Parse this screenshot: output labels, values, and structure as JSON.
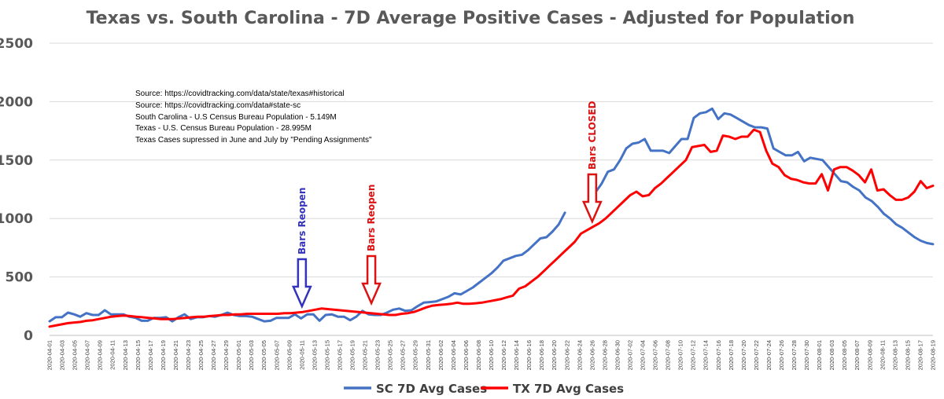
{
  "chart_data": {
    "type": "line",
    "title": "Texas vs. South Carolina - 7D Average Positive Cases - Adjusted for Population",
    "xlabel": "",
    "ylabel": "",
    "ylim": [
      0,
      2500
    ],
    "yticks": [
      0,
      500,
      1000,
      1500,
      2000,
      2500
    ],
    "grid": true,
    "legend_position": "bottom",
    "start_date": "2020-04-01",
    "end_date": "2020-08-19",
    "x_tick_labels": [
      "2020-04-01",
      "2020-04-03",
      "2020-04-05",
      "2020-04-07",
      "2020-04-09",
      "2020-04-11",
      "2020-04-13",
      "2020-04-15",
      "2020-04-17",
      "2020-04-19",
      "2020-04-21",
      "2020-04-23",
      "2020-04-25",
      "2020-04-27",
      "2020-04-29",
      "2020-05-01",
      "2020-05-03",
      "2020-05-05",
      "2020-05-07",
      "2020-05-09",
      "2020-05-11",
      "2020-05-13",
      "2020-05-15",
      "2020-05-17",
      "2020-05-19",
      "2020-05-21",
      "2020-05-23",
      "2020-05-25",
      "2020-05-27",
      "2020-05-29",
      "2020-05-31",
      "2020-06-02",
      "2020-06-04",
      "2020-06-06",
      "2020-06-08",
      "2020-06-10",
      "2020-06-12",
      "2020-06-14",
      "2020-06-16",
      "2020-06-18",
      "2020-06-20",
      "2020-06-22",
      "2020-06-24",
      "2020-06-26",
      "2020-06-28",
      "2020-06-30",
      "2020-07-02",
      "2020-07-04",
      "2020-07-06",
      "2020-07-08",
      "2020-07-10",
      "2020-07-12",
      "2020-07-14",
      "2020-07-16",
      "2020-07-18",
      "2020-07-20",
      "2020-07-22",
      "2020-07-24",
      "2020-07-26",
      "2020-07-28",
      "2020-07-30",
      "2020-08-01",
      "2020-08-03",
      "2020-08-05",
      "2020-08-07",
      "2020-08-09",
      "2020-08-11",
      "2020-08-13",
      "2020-08-15",
      "2020-08-17",
      "2020-08-19"
    ],
    "series": [
      {
        "name": "SC 7D Avg Cases",
        "color": "#4472C4",
        "values": [
          120,
          155,
          155,
          195,
          180,
          160,
          190,
          175,
          175,
          215,
          180,
          180,
          180,
          160,
          150,
          125,
          125,
          150,
          150,
          155,
          120,
          155,
          180,
          140,
          155,
          155,
          165,
          160,
          175,
          195,
          175,
          165,
          165,
          160,
          140,
          120,
          125,
          150,
          150,
          150,
          180,
          145,
          180,
          180,
          125,
          175,
          180,
          160,
          160,
          130,
          160,
          210,
          180,
          175,
          175,
          195,
          220,
          230,
          210,
          215,
          250,
          280,
          285,
          290,
          310,
          330,
          360,
          350,
          380,
          410,
          450,
          490,
          530,
          580,
          640,
          660,
          680,
          690,
          730,
          780,
          830,
          840,
          890,
          950,
          1050,
          null,
          null,
          null,
          null,
          1225,
          1300,
          1400,
          1420,
          1500,
          1600,
          1640,
          1650,
          1680,
          1580,
          1580,
          1580,
          1560,
          1620,
          1680,
          1680,
          1860,
          1900,
          1910,
          1940,
          1850,
          1900,
          1890,
          1860,
          1830,
          1800,
          1780,
          1780,
          1770,
          1600,
          1570,
          1540,
          1540,
          1570,
          1490,
          1520,
          1510,
          1500,
          1440,
          1380,
          1320,
          1310,
          1270,
          1240,
          1180,
          1150,
          1100,
          1040,
          1000,
          950,
          920,
          880,
          840,
          810,
          790,
          780
        ],
        "gaps": "2020-06-25 to 2020-06-28"
      },
      {
        "name": "TX 7D Avg Cases",
        "color": "#FF0000",
        "values": [
          75,
          85,
          95,
          105,
          110,
          115,
          125,
          130,
          140,
          150,
          160,
          165,
          170,
          165,
          160,
          155,
          150,
          145,
          140,
          140,
          140,
          145,
          150,
          155,
          160,
          160,
          165,
          170,
          175,
          175,
          180,
          180,
          185,
          185,
          185,
          185,
          185,
          185,
          190,
          190,
          195,
          200,
          210,
          220,
          230,
          225,
          220,
          215,
          210,
          205,
          200,
          195,
          190,
          185,
          180,
          175,
          175,
          185,
          190,
          200,
          220,
          240,
          255,
          260,
          265,
          270,
          280,
          270,
          270,
          275,
          280,
          290,
          300,
          310,
          325,
          340,
          400,
          420,
          460,
          500,
          550,
          600,
          650,
          700,
          750,
          800,
          870,
          900,
          930,
          960,
          1000,
          1050,
          1100,
          1150,
          1200,
          1230,
          1190,
          1200,
          1260,
          1300,
          1350,
          1400,
          1450,
          1500,
          1610,
          1620,
          1630,
          1570,
          1580,
          1710,
          1700,
          1680,
          1700,
          1700,
          1760,
          1740,
          1580,
          1470,
          1440,
          1370,
          1340,
          1330,
          1310,
          1300,
          1300,
          1380,
          1240,
          1420,
          1440,
          1440,
          1410,
          1370,
          1310,
          1420,
          1240,
          1250,
          1200,
          1160,
          1160,
          1180,
          1230,
          1320,
          1260,
          1280
        ]
      }
    ],
    "annotations": [
      {
        "text": "Bars Reopen",
        "date": "2020-05-11",
        "color": "#3333BB"
      },
      {
        "text": "Bars Reopen",
        "date": "2020-05-22",
        "color": "#DD1111"
      },
      {
        "text": "Bars CLOSED",
        "date": "2020-06-26",
        "color": "#DD1111"
      }
    ]
  },
  "notes": [
    "Source:  https://covidtracking.com/data/state/texas#historical",
    "Source:  https://covidtracking.com/data#state-sc",
    "South Carolina - U.S Census Bureau Population - 5.149M",
    "Texas - U.S. Census Bureau Population - 28.995M",
    "Texas Cases supressed in June and July by \"Pending Assignments\""
  ],
  "legend": [
    {
      "label": "SC 7D Avg Cases",
      "color": "#4472C4"
    },
    {
      "label": "TX 7D Avg Cases",
      "color": "#FF0000"
    }
  ]
}
